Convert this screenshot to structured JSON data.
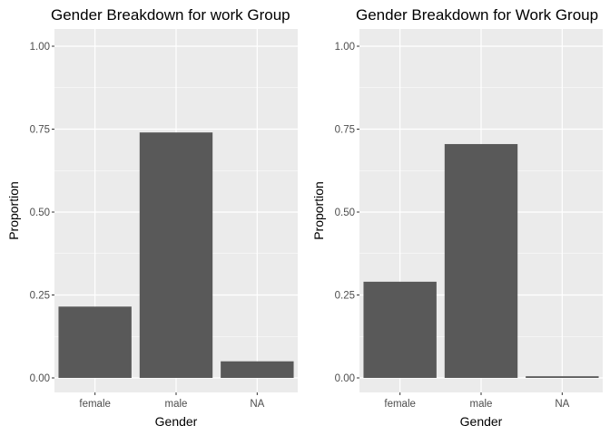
{
  "chart_data": [
    {
      "type": "bar",
      "title": "Gender Breakdown for work Group",
      "xlabel": "Gender",
      "ylabel": "Proportion",
      "categories": [
        "female",
        "male",
        "NA"
      ],
      "values": [
        0.215,
        0.74,
        0.05
      ],
      "ylim": [
        0,
        1
      ],
      "yticks": [
        "0.00",
        "0.25",
        "0.50",
        "0.75",
        "1.00"
      ],
      "grid": true,
      "colors": {
        "panel": "#ebebeb",
        "grid": "#ffffff",
        "bar": "#595959"
      }
    },
    {
      "type": "bar",
      "title": "Gender Breakdown for Work Group",
      "xlabel": "Gender",
      "ylabel": "Proportion",
      "categories": [
        "female",
        "male",
        "NA"
      ],
      "values": [
        0.29,
        0.705,
        0.005
      ],
      "ylim": [
        0,
        1
      ],
      "yticks": [
        "0.00",
        "0.25",
        "0.50",
        "0.75",
        "1.00"
      ],
      "grid": true,
      "colors": {
        "panel": "#ebebeb",
        "grid": "#ffffff",
        "bar": "#595959"
      }
    }
  ]
}
